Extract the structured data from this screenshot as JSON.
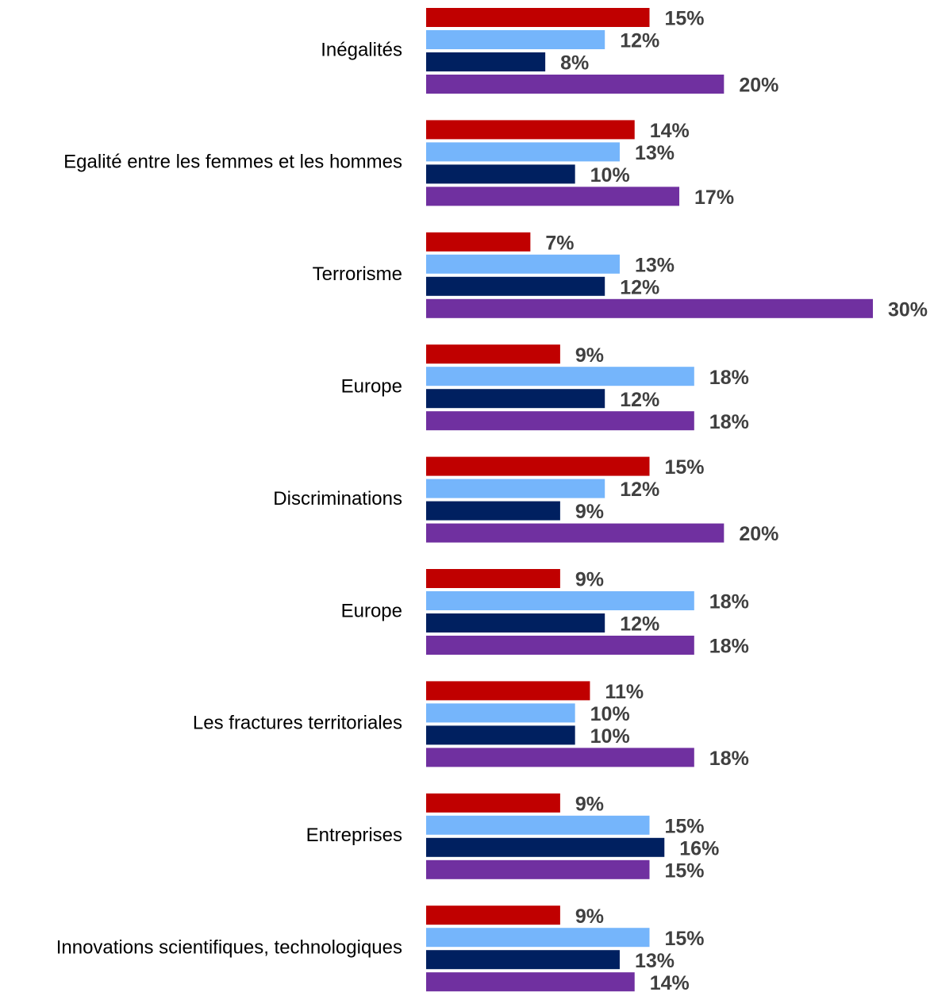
{
  "chart_data": {
    "type": "bar",
    "orientation": "horizontal",
    "categories": [
      "Inégalités",
      "Egalité entre les femmes et les hommes",
      "Terrorisme",
      "Europe",
      "Discriminations",
      "Europe",
      "Les fractures territoriales",
      "Entreprises",
      "Innovations scientifiques, technologiques"
    ],
    "xlim": [
      0,
      30
    ],
    "series": [
      {
        "color": "#c00000",
        "values": [
          15,
          14,
          7,
          9,
          15,
          9,
          11,
          9,
          9
        ],
        "value_labels": [
          "15%",
          "14%",
          "7%",
          "9%",
          "15%",
          "9%",
          "11%",
          "9%",
          "9%"
        ]
      },
      {
        "color": "#75b5fb",
        "values": [
          12,
          13,
          13,
          18,
          12,
          18,
          10,
          15,
          15
        ],
        "value_labels": [
          "12%",
          "13%",
          "13%",
          "18%",
          "12%",
          "18%",
          "10%",
          "15%",
          "15%"
        ]
      },
      {
        "color": "#002060",
        "values": [
          8,
          10,
          12,
          12,
          9,
          12,
          10,
          16,
          13
        ],
        "value_labels": [
          "8%",
          "10%",
          "12%",
          "12%",
          "9%",
          "12%",
          "10%",
          "16%",
          "13%"
        ]
      },
      {
        "color": "#7030a0",
        "values": [
          20,
          17,
          30,
          18,
          20,
          18,
          18,
          15,
          14
        ],
        "value_labels": [
          "20%",
          "17%",
          "30%",
          "18%",
          "20%",
          "18%",
          "18%",
          "15%",
          "14%"
        ]
      }
    ]
  }
}
